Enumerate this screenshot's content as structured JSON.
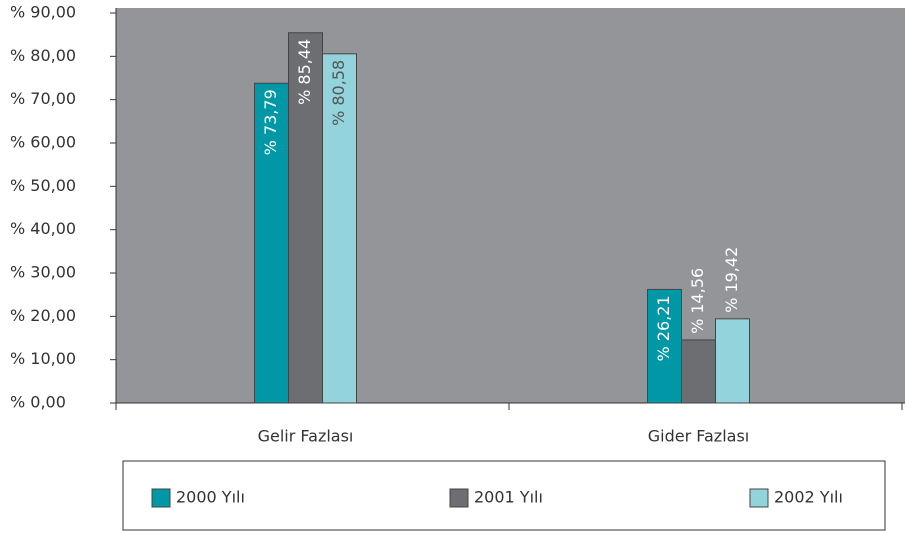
{
  "chart_data": {
    "type": "bar",
    "categories": [
      "Gelir Fazlası",
      "Gider Fazlası"
    ],
    "series": [
      {
        "name": "2000 Yılı",
        "color": "#0098a6",
        "values": [
          73.79,
          26.21
        ],
        "value_labels": [
          "% 73,79",
          "% 26,21"
        ]
      },
      {
        "name": "2001 Yılı",
        "color": "#6d6e71",
        "values": [
          85.44,
          14.56
        ],
        "value_labels": [
          "% 85,44",
          "% 14,56"
        ]
      },
      {
        "name": "2002 Yılı",
        "color": "#93d3db",
        "values": [
          80.58,
          19.42
        ],
        "value_labels": [
          "% 80,58",
          "% 19,42"
        ]
      }
    ],
    "ylim": [
      0,
      90
    ],
    "yticks": [
      {
        "value": 0,
        "label": "%  0,00"
      },
      {
        "value": 10,
        "label": "% 10,00"
      },
      {
        "value": 20,
        "label": "% 20,00"
      },
      {
        "value": 30,
        "label": "% 30,00"
      },
      {
        "value": 40,
        "label": "% 40,00"
      },
      {
        "value": 50,
        "label": "% 50,00"
      },
      {
        "value": 60,
        "label": "% 60,00"
      },
      {
        "value": 70,
        "label": "% 70,00"
      },
      {
        "value": 80,
        "label": "% 80,00"
      },
      {
        "value": 90,
        "label": "% 90,00"
      }
    ],
    "plot_background": "#939598",
    "legend": "bottom"
  }
}
